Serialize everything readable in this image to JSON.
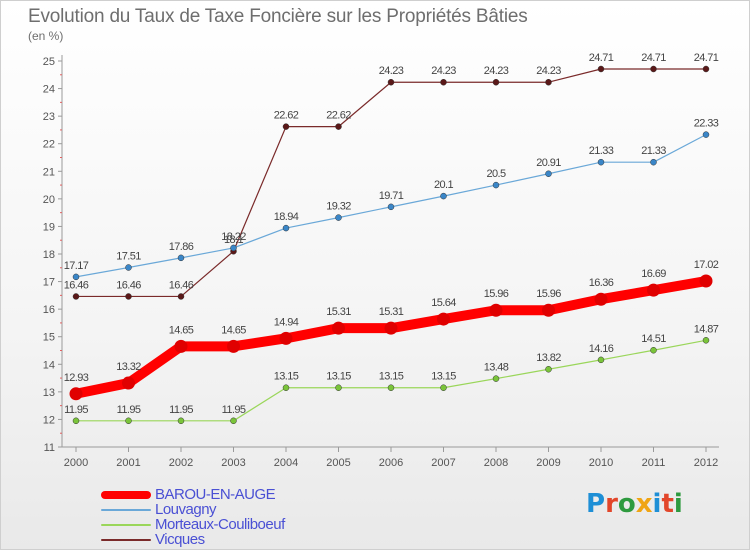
{
  "title": "Evolution du Taux de Taxe Foncière sur les Propriétés Bâties",
  "subtitle": "(en %)",
  "logo_text": "Proxiti",
  "logo_colors": [
    "#1e8fd6",
    "#e2462a",
    "#2e9a3f",
    "#f0a514",
    "#1e8fd6",
    "#e2462a",
    "#2e9a3f"
  ],
  "chart_data": {
    "type": "line",
    "x": [
      "2000",
      "2001",
      "2002",
      "2003",
      "2004",
      "2005",
      "2006",
      "2007",
      "2008",
      "2009",
      "2010",
      "2011",
      "2012"
    ],
    "ylim": [
      11,
      25
    ],
    "yticks": [
      "11",
      "12",
      "13",
      "14",
      "15",
      "16",
      "17",
      "18",
      "19",
      "20",
      "21",
      "22",
      "23",
      "24",
      "25"
    ],
    "grid": false,
    "legend_position": "bottom-left",
    "series": [
      {
        "name": "BAROU-EN-AUGE",
        "color": "#ff0000",
        "labels": [
          "12.93",
          "13.32",
          "14.65",
          "14.65",
          "14.94",
          "15.31",
          "15.31",
          "15.64",
          "15.96",
          "15.96",
          "16.36",
          "16.69",
          "17.02"
        ],
        "values": [
          12.93,
          13.32,
          14.65,
          14.65,
          14.94,
          15.31,
          15.31,
          15.64,
          15.96,
          15.96,
          16.36,
          16.69,
          17.02
        ]
      },
      {
        "name": "Louvagny",
        "color": "#6aa8d8",
        "labels": [
          "17.17",
          "17.51",
          "17.86",
          "18.22",
          "18.94",
          "19.32",
          "19.71",
          "20.1",
          "20.5",
          "20.91",
          "21.33",
          "21.33",
          "22.33"
        ],
        "values": [
          17.17,
          17.51,
          17.86,
          18.22,
          18.94,
          19.32,
          19.71,
          20.1,
          20.5,
          20.91,
          21.33,
          21.33,
          22.33
        ]
      },
      {
        "name": "Morteaux-Couliboeuf",
        "color": "#9ad65a",
        "labels": [
          "11.95",
          "11.95",
          "11.95",
          "11.95",
          "13.15",
          "13.15",
          "13.15",
          "13.15",
          "13.48",
          "13.82",
          "14.16",
          "14.51",
          "14.87"
        ],
        "values": [
          11.95,
          11.95,
          11.95,
          11.95,
          13.15,
          13.15,
          13.15,
          13.15,
          13.48,
          13.82,
          14.16,
          14.51,
          14.87
        ]
      },
      {
        "name": "Vicques",
        "color": "#7a2a2a",
        "labels": [
          "16.46",
          "16.46",
          "16.46",
          "18.1",
          "22.62",
          "22.62",
          "24.23",
          "24.23",
          "24.23",
          "24.23",
          "24.71",
          "24.71",
          "24.71"
        ],
        "values": [
          16.46,
          16.46,
          16.46,
          18.1,
          22.62,
          22.62,
          24.23,
          24.23,
          24.23,
          24.23,
          24.71,
          24.71,
          24.71
        ]
      }
    ]
  }
}
